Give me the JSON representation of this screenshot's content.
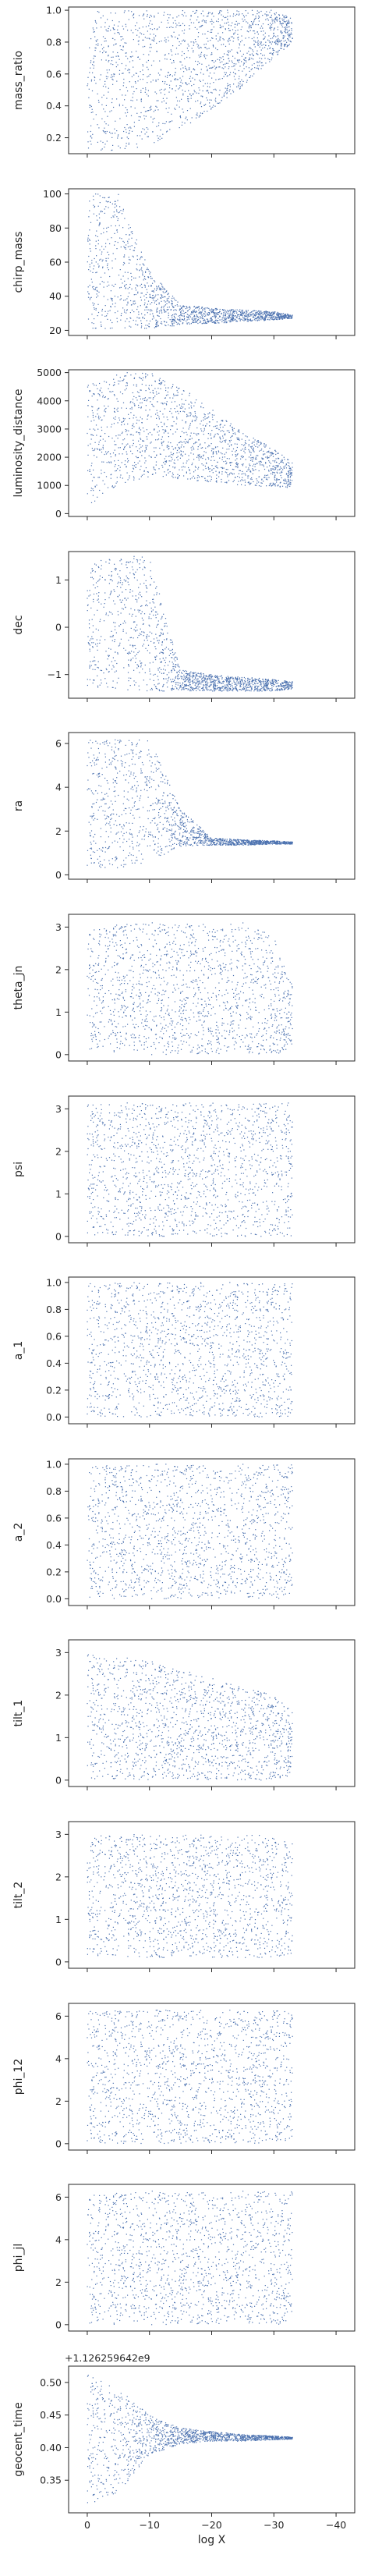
{
  "figure": {
    "xlabel": "log X",
    "x_tick_labels": [
      "0",
      "−10",
      "−20",
      "−30",
      "−40"
    ],
    "marker_color": "#4c72b0"
  },
  "chart_data": [
    {
      "type": "scatter",
      "ylabel": "mass_ratio",
      "ylim": [
        0.1,
        1.02
      ],
      "yticks": [
        0.2,
        0.4,
        0.6,
        0.8,
        1.0
      ],
      "ytick_labels": [
        "0.2",
        "0.4",
        "0.6",
        "0.8",
        "1.0"
      ],
      "xlim": [
        3,
        -43
      ],
      "x": [
        0,
        -5,
        -10,
        -15,
        -20,
        -25,
        -30,
        -33
      ],
      "y_low": [
        0.12,
        0.12,
        0.15,
        0.25,
        0.38,
        0.52,
        0.7,
        0.8
      ],
      "y_high": [
        1.0,
        1.0,
        1.0,
        1.0,
        1.0,
        1.0,
        1.0,
        0.95
      ],
      "n_points": 1500
    },
    {
      "type": "scatter",
      "ylabel": "chirp_mass",
      "ylim": [
        17,
        103
      ],
      "yticks": [
        20,
        40,
        60,
        80,
        100
      ],
      "ytick_labels": [
        "20",
        "40",
        "60",
        "80",
        "100"
      ],
      "xlim": [
        3,
        -43
      ],
      "x": [
        0,
        -5,
        -10,
        -15,
        -20,
        -25,
        -30,
        -33
      ],
      "y_low": [
        21,
        21,
        21,
        23,
        24,
        25,
        26,
        27
      ],
      "y_high": [
        100,
        100,
        55,
        35,
        33,
        32,
        31,
        29
      ],
      "n_points": 1500
    },
    {
      "type": "scatter",
      "ylabel": "luminosity_distance",
      "ylim": [
        -100,
        5100
      ],
      "yticks": [
        0,
        1000,
        2000,
        3000,
        4000,
        5000
      ],
      "ytick_labels": [
        "0",
        "1000",
        "2000",
        "3000",
        "4000",
        "5000"
      ],
      "xlim": [
        3,
        -43
      ],
      "x": [
        0,
        -5,
        -10,
        -15,
        -20,
        -25,
        -30,
        -33
      ],
      "y_low": [
        200,
        1000,
        1300,
        1200,
        1100,
        1000,
        950,
        900
      ],
      "y_high": [
        4600,
        5000,
        5000,
        4500,
        3700,
        2900,
        2300,
        1800
      ],
      "n_points": 1500
    },
    {
      "type": "scatter",
      "ylabel": "dec",
      "ylim": [
        -1.5,
        1.6
      ],
      "yticks": [
        -1,
        0,
        1
      ],
      "ytick_labels": [
        "−1",
        "0",
        "1"
      ],
      "xlim": [
        3,
        -43
      ],
      "x": [
        0,
        -5,
        -10,
        -15,
        -20,
        -25,
        -30,
        -33
      ],
      "y_low": [
        -1.3,
        -1.35,
        -1.35,
        -1.35,
        -1.35,
        -1.35,
        -1.35,
        -1.3
      ],
      "y_high": [
        1.4,
        1.5,
        1.5,
        -0.9,
        -1.0,
        -1.05,
        -1.1,
        -1.15
      ],
      "n_points": 1500
    },
    {
      "type": "scatter",
      "ylabel": "ra",
      "ylim": [
        -0.2,
        6.5
      ],
      "yticks": [
        0,
        2,
        4,
        6
      ],
      "ytick_labels": [
        "0",
        "2",
        "4",
        "6"
      ],
      "xlim": [
        3,
        -43
      ],
      "x": [
        0,
        -5,
        -10,
        -15,
        -20,
        -25,
        -30,
        -33
      ],
      "y_low": [
        0.3,
        0.3,
        0.6,
        1.3,
        1.35,
        1.35,
        1.4,
        1.4
      ],
      "y_high": [
        6.2,
        6.2,
        6.2,
        3.0,
        1.7,
        1.6,
        1.55,
        1.5
      ],
      "n_points": 1500
    },
    {
      "type": "scatter",
      "ylabel": "theta_jn",
      "ylim": [
        -0.15,
        3.3
      ],
      "yticks": [
        0,
        1,
        2,
        3
      ],
      "ytick_labels": [
        "0",
        "1",
        "2",
        "3"
      ],
      "xlim": [
        3,
        -43
      ],
      "x": [
        0,
        -5,
        -10,
        -15,
        -20,
        -25,
        -30,
        -33
      ],
      "y_low": [
        0.1,
        0.05,
        0.0,
        0.0,
        0.0,
        0.0,
        0.0,
        0.1
      ],
      "y_high": [
        3.0,
        3.1,
        3.1,
        3.1,
        3.1,
        3.1,
        2.8,
        1.6
      ],
      "n_points": 1500
    },
    {
      "type": "scatter",
      "ylabel": "psi",
      "ylim": [
        -0.15,
        3.3
      ],
      "yticks": [
        0,
        1,
        2,
        3
      ],
      "ytick_labels": [
        "0",
        "1",
        "2",
        "3"
      ],
      "xlim": [
        3,
        -43
      ],
      "x": [
        0,
        -5,
        -10,
        -15,
        -20,
        -25,
        -30,
        -33
      ],
      "y_low": [
        0.0,
        0.0,
        0.0,
        0.0,
        0.0,
        0.0,
        0.0,
        0.0
      ],
      "y_high": [
        3.14,
        3.14,
        3.14,
        3.14,
        3.14,
        3.14,
        3.14,
        3.14
      ],
      "n_points": 1500
    },
    {
      "type": "scatter",
      "ylabel": "a_1",
      "ylim": [
        -0.05,
        1.04
      ],
      "yticks": [
        0.0,
        0.2,
        0.4,
        0.6,
        0.8,
        1.0
      ],
      "ytick_labels": [
        "0.0",
        "0.2",
        "0.4",
        "0.6",
        "0.8",
        "1.0"
      ],
      "xlim": [
        3,
        -43
      ],
      "x": [
        0,
        -5,
        -10,
        -15,
        -20,
        -25,
        -30,
        -33
      ],
      "y_low": [
        0.0,
        0.0,
        0.0,
        0.0,
        0.0,
        0.0,
        0.0,
        0.0
      ],
      "y_high": [
        1.0,
        1.0,
        1.0,
        1.0,
        1.0,
        1.0,
        1.0,
        1.0
      ],
      "n_points": 1500
    },
    {
      "type": "scatter",
      "ylabel": "a_2",
      "ylim": [
        -0.05,
        1.04
      ],
      "yticks": [
        0.0,
        0.2,
        0.4,
        0.6,
        0.8,
        1.0
      ],
      "ytick_labels": [
        "0.0",
        "0.2",
        "0.4",
        "0.6",
        "0.8",
        "1.0"
      ],
      "xlim": [
        3,
        -43
      ],
      "x": [
        0,
        -5,
        -10,
        -15,
        -20,
        -25,
        -30,
        -33
      ],
      "y_low": [
        0.0,
        0.0,
        0.0,
        0.0,
        0.0,
        0.0,
        0.0,
        0.0
      ],
      "y_high": [
        1.0,
        1.0,
        1.0,
        1.0,
        1.0,
        1.0,
        1.0,
        1.0
      ],
      "n_points": 1500
    },
    {
      "type": "scatter",
      "ylabel": "tilt_1",
      "ylim": [
        -0.15,
        3.3
      ],
      "yticks": [
        0,
        1,
        2,
        3
      ],
      "ytick_labels": [
        "0",
        "1",
        "2",
        "3"
      ],
      "xlim": [
        3,
        -43
      ],
      "x": [
        0,
        -5,
        -10,
        -15,
        -20,
        -25,
        -30,
        -33
      ],
      "y_low": [
        0.0,
        0.0,
        0.0,
        0.0,
        0.0,
        0.0,
        0.0,
        0.1
      ],
      "y_high": [
        3.0,
        2.9,
        2.8,
        2.6,
        2.4,
        2.2,
        2.0,
        1.6
      ],
      "n_points": 1500
    },
    {
      "type": "scatter",
      "ylabel": "tilt_2",
      "ylim": [
        -0.15,
        3.3
      ],
      "yticks": [
        0,
        1,
        2,
        3
      ],
      "ytick_labels": [
        "0",
        "1",
        "2",
        "3"
      ],
      "xlim": [
        3,
        -43
      ],
      "x": [
        0,
        -5,
        -10,
        -15,
        -20,
        -25,
        -30,
        -33
      ],
      "y_low": [
        0.1,
        0.1,
        0.1,
        0.1,
        0.1,
        0.1,
        0.1,
        0.2
      ],
      "y_high": [
        3.0,
        3.0,
        3.0,
        3.0,
        3.0,
        3.0,
        3.0,
        2.8
      ],
      "n_points": 1500
    },
    {
      "type": "scatter",
      "ylabel": "phi_12",
      "ylim": [
        -0.3,
        6.6
      ],
      "yticks": [
        0,
        2,
        4,
        6
      ],
      "ytick_labels": [
        "0",
        "2",
        "4",
        "6"
      ],
      "xlim": [
        3,
        -43
      ],
      "x": [
        0,
        -5,
        -10,
        -15,
        -20,
        -25,
        -30,
        -33
      ],
      "y_low": [
        0.0,
        0.0,
        0.0,
        0.0,
        0.0,
        0.0,
        0.0,
        0.0
      ],
      "y_high": [
        6.28,
        6.28,
        6.28,
        6.28,
        6.28,
        6.28,
        6.28,
        6.28
      ],
      "n_points": 1500
    },
    {
      "type": "scatter",
      "ylabel": "phi_jl",
      "ylim": [
        -0.3,
        6.6
      ],
      "yticks": [
        0,
        2,
        4,
        6
      ],
      "ytick_labels": [
        "0",
        "2",
        "4",
        "6"
      ],
      "xlim": [
        3,
        -43
      ],
      "x": [
        0,
        -5,
        -10,
        -15,
        -20,
        -25,
        -30,
        -33
      ],
      "y_low": [
        0.0,
        0.0,
        0.0,
        0.0,
        0.0,
        0.0,
        0.0,
        0.0
      ],
      "y_high": [
        6.28,
        6.28,
        6.28,
        6.28,
        6.28,
        6.28,
        6.28,
        6.28
      ],
      "n_points": 1500
    },
    {
      "type": "scatter",
      "ylabel": "geocent_time",
      "offset_text": "+1.126259642e9",
      "ylim": [
        0.3,
        0.525
      ],
      "yticks": [
        0.35,
        0.4,
        0.45,
        0.5
      ],
      "ytick_labels": [
        "0.35",
        "0.40",
        "0.45",
        "0.50"
      ],
      "xlim": [
        3,
        -43
      ],
      "x": [
        0,
        -5,
        -10,
        -15,
        -20,
        -25,
        -30,
        -33
      ],
      "y_low": [
        0.31,
        0.33,
        0.39,
        0.405,
        0.41,
        0.41,
        0.412,
        0.413
      ],
      "y_high": [
        0.515,
        0.49,
        0.45,
        0.43,
        0.425,
        0.42,
        0.418,
        0.416
      ],
      "n_points": 1500
    }
  ]
}
